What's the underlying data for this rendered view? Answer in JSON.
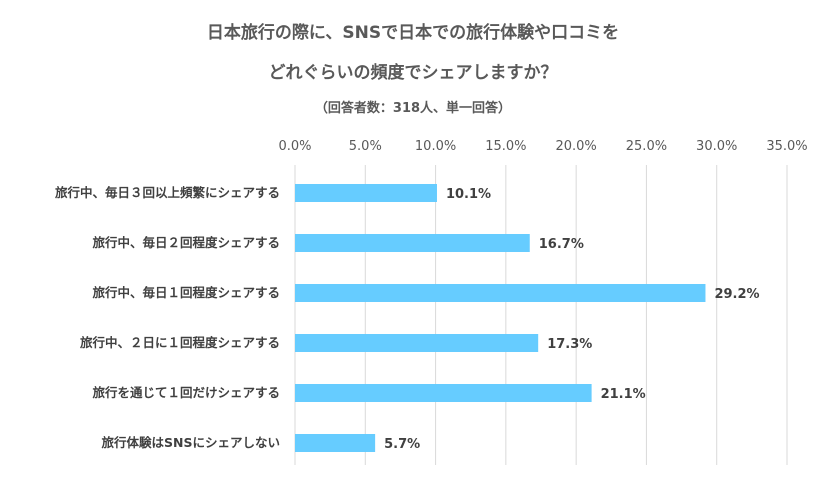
{
  "chart_data": {
    "type": "bar",
    "orientation": "horizontal",
    "title_line1": "日本旅行の際に、SNSで日本での旅行体験や口コミを",
    "title_line2": "どれぐらいの頻度でシェアしますか？",
    "subtitle": "（回答者数：318人、単一回答）",
    "xlim": [
      0,
      35
    ],
    "ticks": [
      0,
      5,
      10,
      15,
      20,
      25,
      30,
      35
    ],
    "tick_labels": [
      "0.0%",
      "5.0%",
      "10.0%",
      "15.0%",
      "20.0%",
      "25.0%",
      "30.0%",
      "35.0%"
    ],
    "grid": true,
    "categories": [
      "旅行中、毎日３回以上頻繁にシェアする",
      "旅行中、毎日２回程度シェアする",
      "旅行中、毎日１回程度シェアする",
      "旅行中、２日に１回程度シェアする",
      "旅行を通じて１回だけシェアする",
      "旅行体験はSNSにシェアしない"
    ],
    "values": [
      10.1,
      16.7,
      29.2,
      17.3,
      21.1,
      5.7
    ],
    "value_labels": [
      "10.1%",
      "16.7%",
      "29.2%",
      "17.3%",
      "21.1%",
      "5.7%"
    ],
    "bar_color": "#66ccff"
  }
}
